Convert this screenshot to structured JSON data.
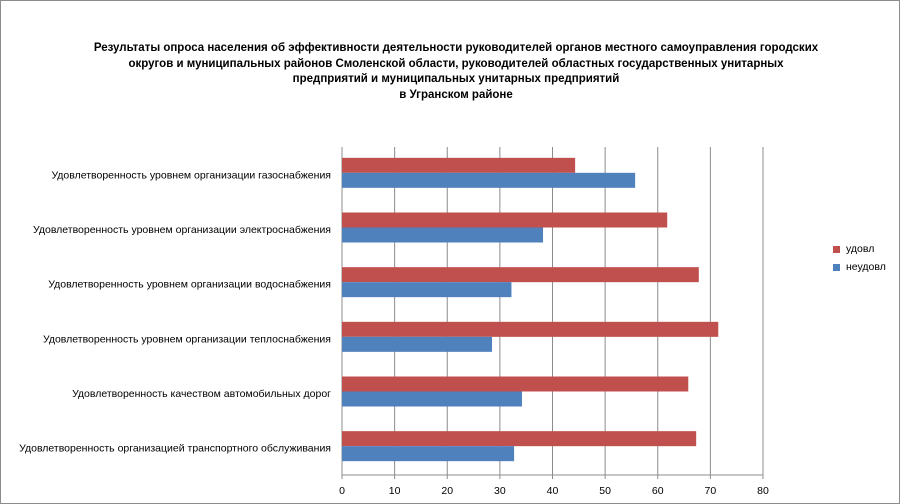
{
  "chart_data": {
    "type": "bar",
    "orientation": "horizontal",
    "title_lines": [
      "Результаты опроса населения об эффективности деятельности руководителей органов местного самоуправления городских",
      "округов и муниципальных районов Смоленской области, руководителей областных государственных унитарных",
      "предприятий и муниципальных унитарных предприятий",
      "в Угранском районе"
    ],
    "categories": [
      "Удовлетворенность уровнем организации газоснабжения",
      "Удовлетворенность уровнем организации электроснабжения",
      "Удовлетворенность уровнем организации водоснабжения",
      "Удовлетворенность уровнем организации теплоснабжения",
      "Удовлетворенность качеством автомобильных дорог",
      "Удовлетворенность организацией транспортного обслуживания"
    ],
    "series": [
      {
        "name": "удовл",
        "color": "#c0504d",
        "values": [
          44.3,
          61.8,
          67.8,
          71.5,
          65.8,
          67.3
        ]
      },
      {
        "name": "неудовл",
        "color": "#4f81bd",
        "values": [
          55.7,
          38.2,
          32.2,
          28.5,
          34.2,
          32.7
        ]
      }
    ],
    "xlim": [
      0,
      80
    ],
    "xticks": [
      "0",
      "10",
      "20",
      "30",
      "40",
      "50",
      "60",
      "70",
      "80"
    ],
    "grid": true,
    "legend_position": "right"
  }
}
